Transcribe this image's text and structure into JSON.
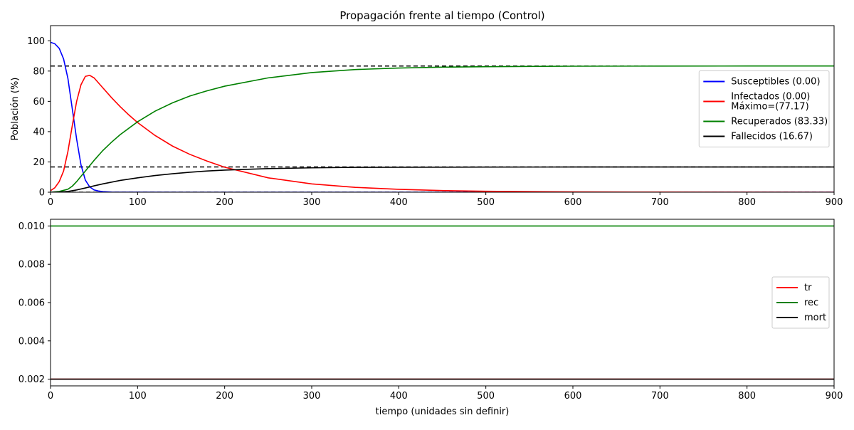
{
  "chart_data": [
    {
      "type": "line",
      "title": "Propagación frente al tiempo (Control)",
      "xlabel": "",
      "ylabel": "Población (%)",
      "xlim": [
        0,
        900
      ],
      "ylim": [
        0,
        110
      ],
      "xticks": [
        0,
        100,
        200,
        300,
        400,
        500,
        600,
        700,
        800,
        900
      ],
      "yticks": [
        0,
        20,
        40,
        60,
        80,
        100
      ],
      "legend_position": "center-right",
      "grid": false,
      "reference_lines": [
        {
          "y": 83.33,
          "style": "dashed",
          "color": "#000000"
        },
        {
          "y": 16.67,
          "style": "dashed",
          "color": "#000000"
        },
        {
          "y": 0,
          "style": "dashed",
          "color": "#000000"
        }
      ],
      "series": [
        {
          "name": "Susceptibles (0.00)",
          "color": "#0000ff",
          "x": [
            0,
            5,
            10,
            15,
            20,
            25,
            30,
            35,
            40,
            45,
            50,
            55,
            60,
            70,
            80,
            100,
            150,
            200,
            300,
            400,
            500,
            600,
            700,
            800,
            900
          ],
          "y": [
            99,
            98,
            95,
            88,
            75,
            55,
            35,
            18,
            8,
            3.5,
            1.5,
            0.8,
            0.4,
            0.1,
            0.05,
            0.02,
            0,
            0,
            0,
            0,
            0,
            0,
            0,
            0,
            0
          ]
        },
        {
          "name": "Infectados (0.00)\nMáximo=(77.17)",
          "label_lines": [
            "Infectados (0.00)",
            "Máximo=(77.17)"
          ],
          "color": "#ff0000",
          "x": [
            0,
            5,
            10,
            15,
            20,
            25,
            30,
            35,
            40,
            45,
            50,
            60,
            70,
            80,
            90,
            100,
            120,
            140,
            160,
            180,
            200,
            250,
            300,
            350,
            400,
            450,
            500,
            600,
            700,
            800,
            900
          ],
          "y": [
            1,
            3,
            7,
            14,
            27,
            44,
            60,
            71,
            76.5,
            77.17,
            75.5,
            69,
            62.5,
            56.5,
            51,
            46,
            37.5,
            30.5,
            25,
            20.5,
            16.5,
            9.5,
            5.5,
            3.2,
            1.9,
            1.1,
            0.6,
            0.2,
            0.07,
            0.02,
            0
          ]
        },
        {
          "name": "Recuperados (83.33)",
          "color": "#008000",
          "x": [
            0,
            10,
            20,
            25,
            30,
            35,
            40,
            50,
            60,
            70,
            80,
            100,
            120,
            140,
            160,
            180,
            200,
            250,
            300,
            350,
            400,
            450,
            500,
            600,
            700,
            800,
            900
          ],
          "y": [
            0,
            0.5,
            2,
            4,
            7,
            10.5,
            14,
            21,
            27.5,
            33,
            38,
            46.5,
            53.5,
            59,
            63.5,
            67,
            70,
            75.5,
            79,
            81,
            82,
            82.6,
            82.9,
            83.2,
            83.3,
            83.33,
            83.33
          ]
        },
        {
          "name": "Fallecidos (16.67)",
          "color": "#000000",
          "x": [
            0,
            10,
            20,
            30,
            40,
            50,
            60,
            80,
            100,
            120,
            140,
            160,
            180,
            200,
            250,
            300,
            350,
            400,
            500,
            600,
            700,
            800,
            900
          ],
          "y": [
            0,
            0.1,
            0.5,
            1.5,
            2.8,
            4.2,
            5.5,
            7.8,
            9.5,
            11,
            12.2,
            13.2,
            14,
            14.6,
            15.6,
            16.1,
            16.4,
            16.5,
            16.6,
            16.65,
            16.67,
            16.67,
            16.67
          ]
        }
      ]
    },
    {
      "type": "line",
      "title": "",
      "xlabel": "tiempo (unidades sin definir)",
      "ylabel": "",
      "xlim": [
        0,
        900
      ],
      "ylim": [
        0.00165,
        0.01035
      ],
      "xticks": [
        0,
        100,
        200,
        300,
        400,
        500,
        600,
        700,
        800,
        900
      ],
      "yticks": [
        0.002,
        0.004,
        0.006,
        0.008,
        0.01
      ],
      "ytick_labels": [
        "0.002",
        "0.004",
        "0.006",
        "0.008",
        "0.010"
      ],
      "legend_position": "center-right",
      "grid": false,
      "series": [
        {
          "name": "tr",
          "color": "#ff0000",
          "x": [
            0,
            900
          ],
          "y": [
            0.002,
            0.002
          ]
        },
        {
          "name": "rec",
          "color": "#008000",
          "x": [
            0,
            900
          ],
          "y": [
            0.01,
            0.01
          ]
        },
        {
          "name": "mort",
          "color": "#000000",
          "x": [
            0,
            900
          ],
          "y": [
            0.002,
            0.002
          ]
        }
      ]
    }
  ]
}
